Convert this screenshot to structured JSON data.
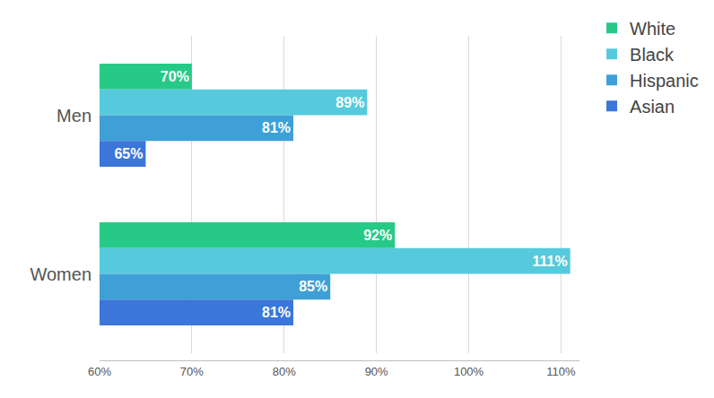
{
  "chart_data": {
    "type": "bar",
    "orientation": "horizontal",
    "categories": [
      "Men",
      "Women"
    ],
    "series": [
      {
        "name": "White",
        "color": "#27c987",
        "values": [
          70,
          92
        ],
        "value_labels": [
          "70%",
          "92%"
        ]
      },
      {
        "name": "Black",
        "color": "#56cadc",
        "values": [
          89,
          111
        ],
        "value_labels": [
          "89%",
          "111%"
        ]
      },
      {
        "name": "Hispanic",
        "color": "#3ea0d6",
        "values": [
          81,
          85
        ],
        "value_labels": [
          "81%",
          "85%"
        ]
      },
      {
        "name": "Asian",
        "color": "#3b76d9",
        "values": [
          65,
          81
        ],
        "value_labels": [
          "65%",
          "81%"
        ]
      }
    ],
    "xlim": [
      60,
      112
    ],
    "xticks": [
      {
        "value": 60,
        "label": "60%"
      },
      {
        "value": 70,
        "label": "70%"
      },
      {
        "value": 80,
        "label": "80%"
      },
      {
        "value": 90,
        "label": "90%"
      },
      {
        "value": 100,
        "label": "100%"
      },
      {
        "value": 110,
        "label": "110%"
      }
    ],
    "grid": true,
    "legend": "top-right",
    "data_labels": true
  }
}
